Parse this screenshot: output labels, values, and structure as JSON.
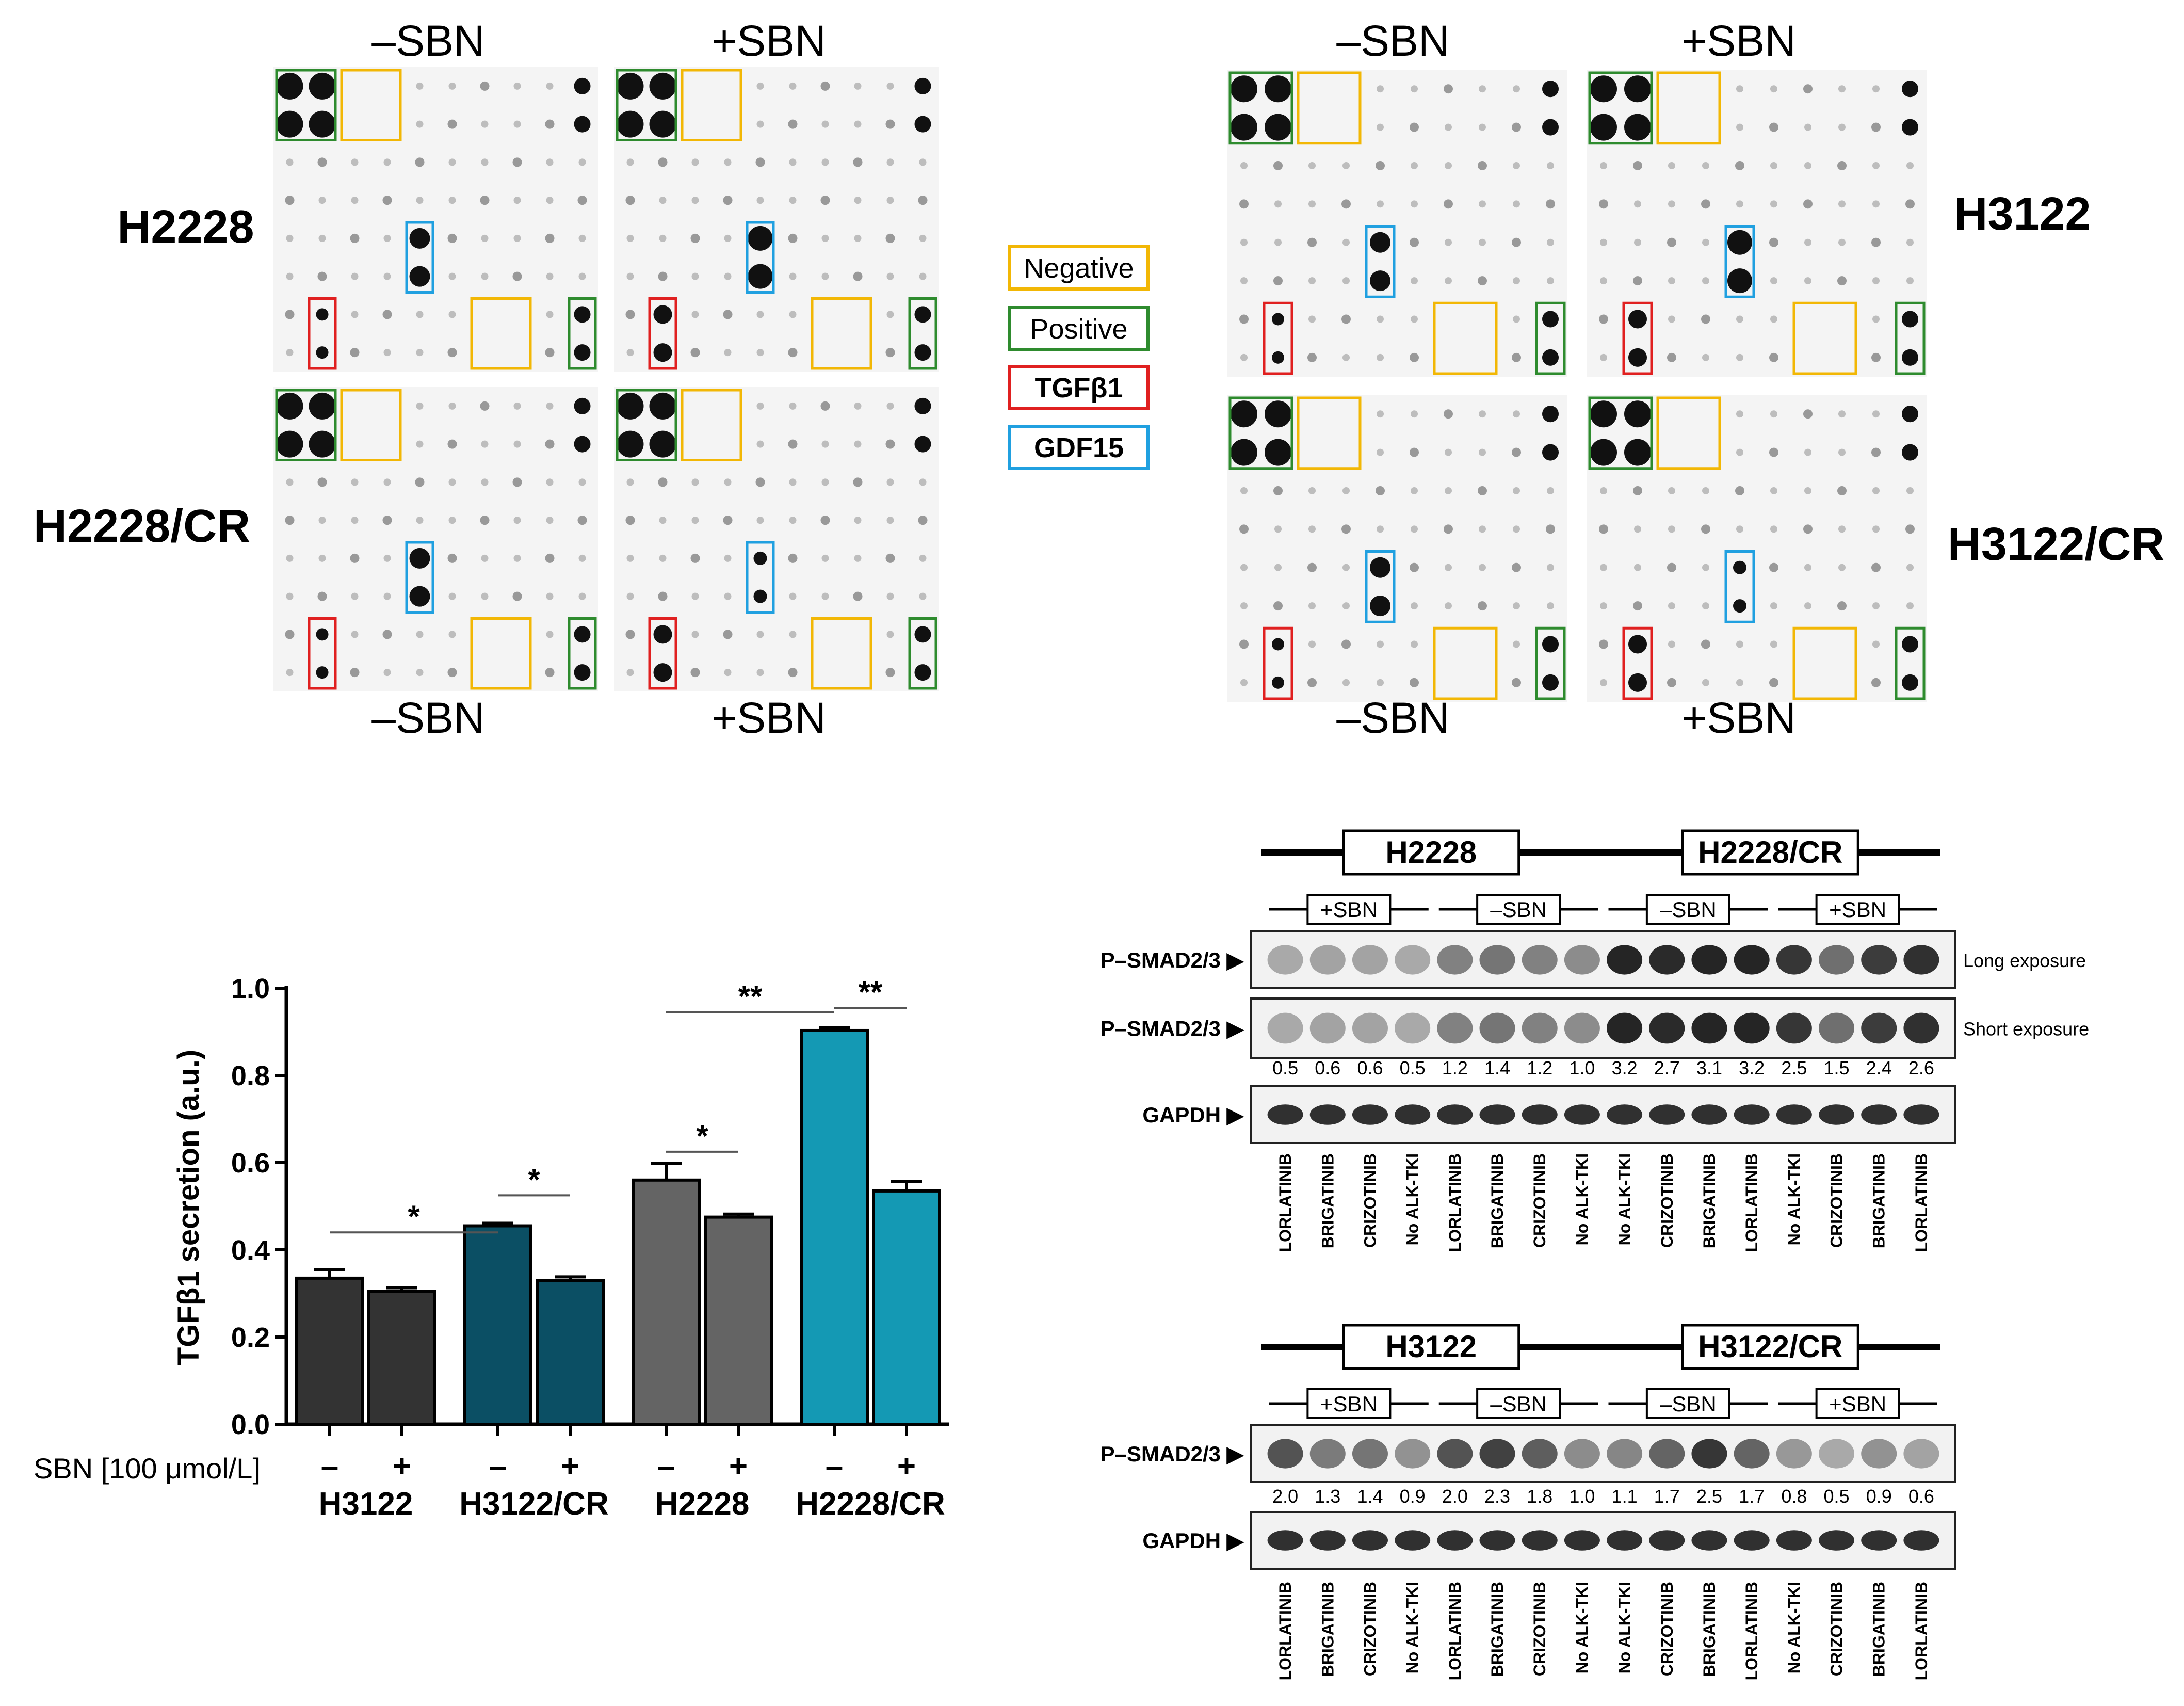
{
  "arrays": {
    "left": {
      "top_headers": [
        "–SBN",
        "+SBN"
      ],
      "bottom_headers": [
        "–SBN",
        "+SBN"
      ],
      "row_labels": [
        "H2228",
        "H2228/CR"
      ]
    },
    "right": {
      "top_headers": [
        "–SBN",
        "+SBN"
      ],
      "bottom_headers": [
        "–SBN",
        "+SBN"
      ],
      "row_labels": [
        "H3122",
        "H3122/CR"
      ]
    }
  },
  "legend": [
    {
      "label": "Negative",
      "color": "#f2b705"
    },
    {
      "label": "Positive",
      "color": "#2e8b2e"
    },
    {
      "label": "TGFβ1",
      "color": "#e02020"
    },
    {
      "label": "GDF15",
      "color": "#20a0e0"
    }
  ],
  "chart_data": {
    "type": "bar",
    "ylabel": "TGFβ1 secretion (a.u.)",
    "ylim": [
      0,
      1.0
    ],
    "yticks": [
      "0.0",
      "0.2",
      "0.4",
      "0.6",
      "0.8",
      "1.0"
    ],
    "sbn_label": "SBN [100 μmol/L]",
    "groups": [
      {
        "name": "H3122",
        "color": "#333333",
        "bars": [
          {
            "sbn": "–",
            "value": 0.335,
            "err": 0.02
          },
          {
            "sbn": "+",
            "value": 0.305,
            "err": 0.008
          }
        ]
      },
      {
        "name": "H3122/CR",
        "color": "#0b4f64",
        "bars": [
          {
            "sbn": "–",
            "value": 0.455,
            "err": 0.006
          },
          {
            "sbn": "+",
            "value": 0.33,
            "err": 0.008
          }
        ]
      },
      {
        "name": "H2228",
        "color": "#646464",
        "bars": [
          {
            "sbn": "–",
            "value": 0.56,
            "err": 0.038
          },
          {
            "sbn": "+",
            "value": 0.475,
            "err": 0.007
          }
        ]
      },
      {
        "name": "H2228/CR",
        "color": "#1499b4",
        "bars": [
          {
            "sbn": "–",
            "value": 0.903,
            "err": 0.006
          },
          {
            "sbn": "+",
            "value": 0.535,
            "err": 0.022
          }
        ]
      }
    ],
    "significance": [
      "*",
      "*",
      "*",
      "**",
      "**"
    ]
  },
  "blots": {
    "top": {
      "groups": [
        "H2228",
        "H2228/CR"
      ],
      "conditions": [
        "+SBN",
        "–SBN",
        "–SBN",
        "+SBN"
      ],
      "rows": [
        "P–SMAD2/3 ▶",
        "P–SMAD2/3 ▶",
        "GAPDH ▶"
      ],
      "exposure": [
        "Long exposure",
        "Short exposure"
      ],
      "quant": [
        "0.5",
        "0.6",
        "0.6",
        "0.5",
        "1.2",
        "1.4",
        "1.2",
        "1.0",
        "3.2",
        "2.7",
        "3.1",
        "3.2",
        "2.5",
        "1.5",
        "2.4",
        "2.6"
      ],
      "lanes": [
        "LORLATINIB",
        "BRIGATINIB",
        "CRIZOTINIB",
        "No ALK-TKI",
        "LORLATINIB",
        "BRIGATINIB",
        "CRIZOTINIB",
        "No ALK-TKI",
        "No ALK-TKI",
        "CRIZOTINIB",
        "BRIGATINIB",
        "LORLATINIB",
        "No ALK-TKI",
        "CRIZOTINIB",
        "BRIGATINIB",
        "LORLATINIB"
      ]
    },
    "bottom": {
      "groups": [
        "H3122",
        "H3122/CR"
      ],
      "conditions": [
        "+SBN",
        "–SBN",
        "–SBN",
        "+SBN"
      ],
      "rows": [
        "P–SMAD2/3 ▶",
        "GAPDH ▶"
      ],
      "quant": [
        "2.0",
        "1.3",
        "1.4",
        "0.9",
        "2.0",
        "2.3",
        "1.8",
        "1.0",
        "1.1",
        "1.7",
        "2.5",
        "1.7",
        "0.8",
        "0.5",
        "0.9",
        "0.6"
      ],
      "lanes": [
        "LORLATINIB",
        "BRIGATINIB",
        "CRIZOTINIB",
        "No ALK-TKI",
        "LORLATINIB",
        "BRIGATINIB",
        "CRIZOTINIB",
        "No ALK-TKI",
        "No ALK-TKI",
        "CRIZOTINIB",
        "BRIGATINIB",
        "LORLATINIB",
        "No ALK-TKI",
        "CRIZOTINIB",
        "BRIGATINIB",
        "LORLATINIB"
      ]
    }
  }
}
